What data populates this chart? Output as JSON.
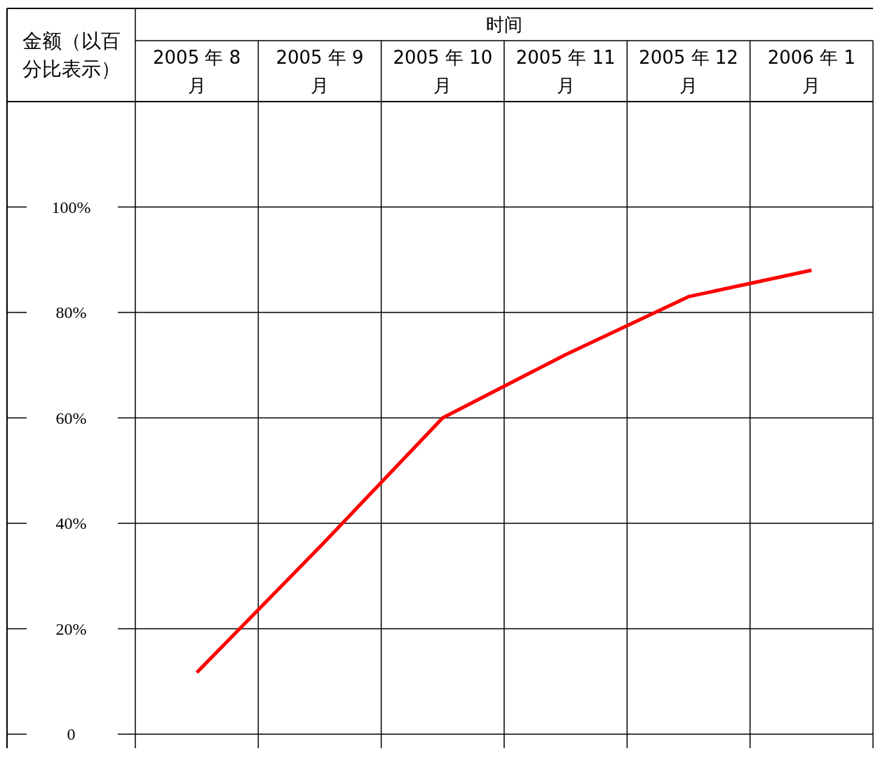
{
  "chart_data": {
    "type": "line",
    "xlabel": "时间",
    "ylabel": "金额（以百分比表示）",
    "categories": [
      "2005 年 8 月",
      "2005 年 9 月",
      "2005 年 10 月",
      "2005 年 11 月",
      "2005 年 12 月",
      "2006 年 1 月"
    ],
    "ylim": [
      0,
      120
    ],
    "yticks": [
      {
        "value": 0,
        "label": "0"
      },
      {
        "value": 20,
        "label": "20%"
      },
      {
        "value": 40,
        "label": "40%"
      },
      {
        "value": 60,
        "label": "60%"
      },
      {
        "value": 80,
        "label": "80%"
      },
      {
        "value": 100,
        "label": "100%"
      }
    ],
    "grid": true,
    "marker": "none",
    "line_style": "solid",
    "series": [
      {
        "color": "#ff0000",
        "values": [
          11.7,
          35.5,
          60,
          72,
          83,
          88
        ]
      }
    ]
  }
}
